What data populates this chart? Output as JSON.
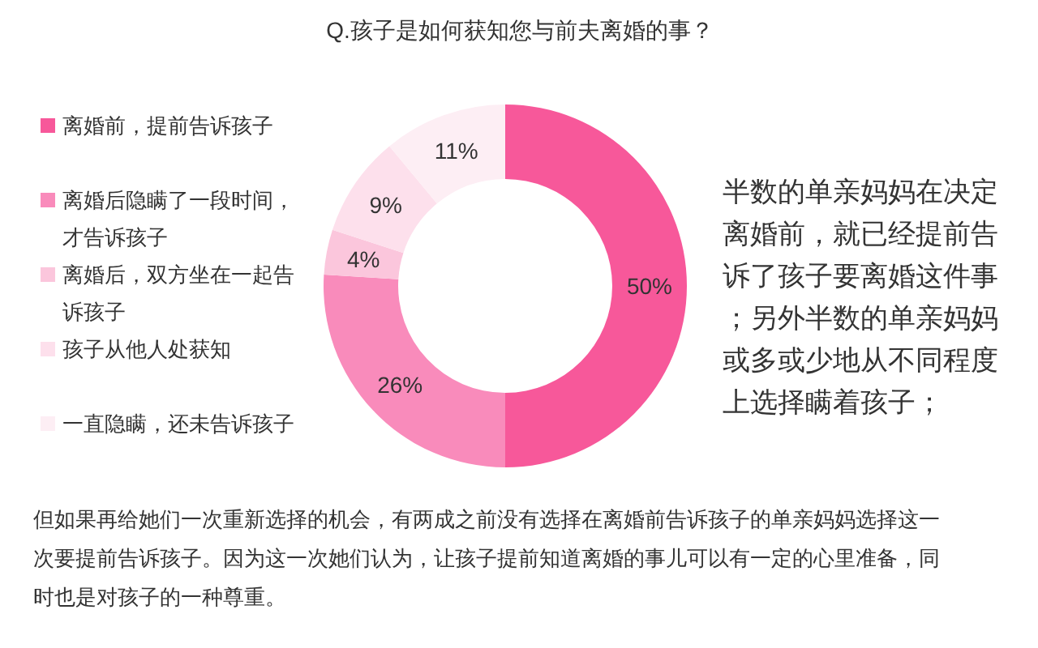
{
  "chart_data": {
    "type": "donut",
    "title": "Q.孩子是如何获知您与前夫离婚的事？",
    "categories": [
      "离婚前，提前告诉孩子",
      "离婚后隐瞒了一段时间，才告诉孩子",
      "离婚后，双方坐在一起告诉孩子",
      "孩子从他人处获知",
      "一直隐瞒，还未告诉孩子"
    ],
    "values": [
      50,
      26,
      4,
      9,
      11
    ],
    "colors": [
      "#f7589a",
      "#f98bbb",
      "#fbc6dc",
      "#fde0ec",
      "#fdeef4"
    ],
    "value_labels": [
      "50%",
      "26%",
      "4%",
      "9%",
      "11%"
    ],
    "legend": "left",
    "annotations": [
      "半数的单亲妈妈在决定离婚前，就已经提前告诉了孩子要离婚这件事；另外半数的单亲妈妈或多或少地从不同程度上选择瞒着孩子；",
      "但如果再给她们一次重新选择的机会，有两成之前没有选择在离婚前告诉孩子的单亲妈妈选择这一次要提前告诉孩子。因为这一次她们认为，让孩子提前知道离婚的事儿可以有一定的心里准备，同时也是对孩子的一种尊重。"
    ]
  }
}
